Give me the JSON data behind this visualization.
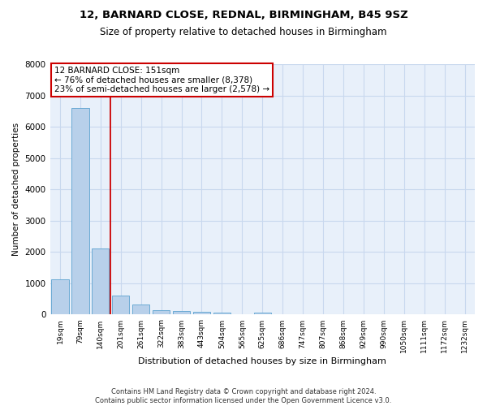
{
  "title_line1": "12, BARNARD CLOSE, REDNAL, BIRMINGHAM, B45 9SZ",
  "title_line2": "Size of property relative to detached houses in Birmingham",
  "xlabel": "Distribution of detached houses by size in Birmingham",
  "ylabel": "Number of detached properties",
  "footnote": "Contains HM Land Registry data © Crown copyright and database right 2024.\nContains public sector information licensed under the Open Government Licence v3.0.",
  "bar_color": "#b8d0ea",
  "bar_edge_color": "#6aaad4",
  "background_color": "#e8f0fa",
  "grid_color": "#c8d8ee",
  "annotation_box_color": "#cc0000",
  "vline_color": "#cc0000",
  "categories": [
    "19sqm",
    "79sqm",
    "140sqm",
    "201sqm",
    "261sqm",
    "322sqm",
    "383sqm",
    "443sqm",
    "504sqm",
    "565sqm",
    "625sqm",
    "686sqm",
    "747sqm",
    "807sqm",
    "868sqm",
    "929sqm",
    "990sqm",
    "1050sqm",
    "1111sqm",
    "1172sqm",
    "1232sqm"
  ],
  "values": [
    1130,
    6600,
    2100,
    600,
    320,
    150,
    110,
    80,
    75,
    0,
    75,
    0,
    0,
    0,
    0,
    0,
    0,
    0,
    0,
    0,
    0
  ],
  "ylim": [
    0,
    8000
  ],
  "yticks": [
    0,
    1000,
    2000,
    3000,
    4000,
    5000,
    6000,
    7000,
    8000
  ],
  "vline_x": 2.5,
  "annotation_text": "12 BARNARD CLOSE: 151sqm\n← 76% of detached houses are smaller (8,378)\n23% of semi-detached houses are larger (2,578) →"
}
